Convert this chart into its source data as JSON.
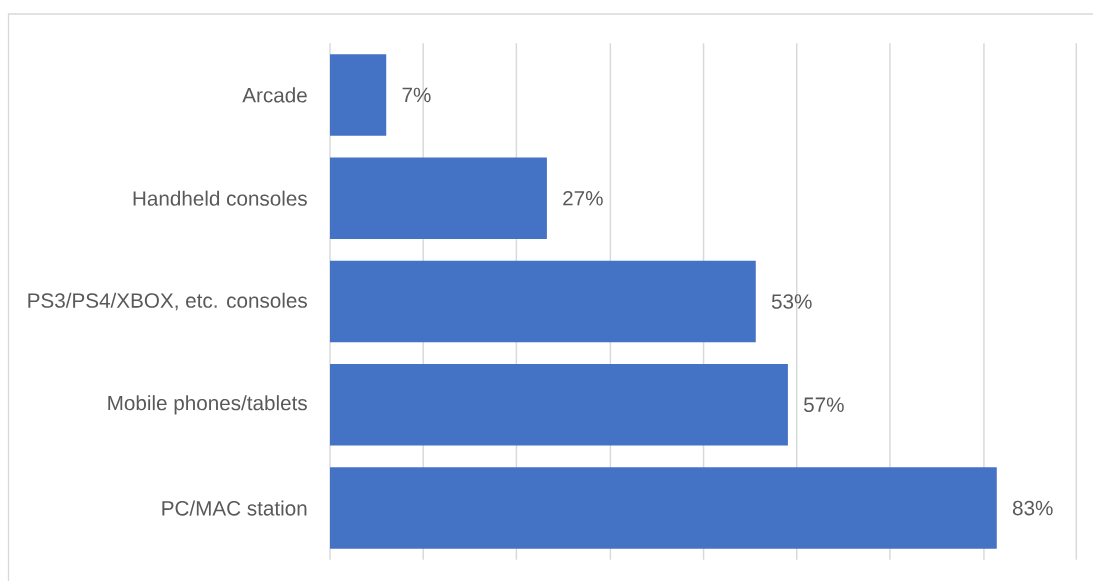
{
  "chart_data": {
    "type": "bar",
    "orientation": "horizontal",
    "categories": [
      "Arcade",
      "Handheld consoles",
      "PS3/PS4/XBOX, etc. consoles",
      "Mobile phones/tablets",
      "PC/MAC station"
    ],
    "values": [
      7,
      27,
      53,
      57,
      83
    ],
    "color": "#4472c4",
    "value_labels": [
      "7%",
      "27%",
      "53%",
      "57%",
      "83%"
    ],
    "xlim": [
      0,
      92.9
    ],
    "xticks": [
      {
        "value": 0,
        "label": null
      },
      {
        "value": 11.6,
        "label": null
      },
      {
        "value": 23.2,
        "label": null
      },
      {
        "value": 34.9,
        "label": null
      },
      {
        "value": 46.5,
        "label": null
      },
      {
        "value": 58.1,
        "label": null
      },
      {
        "value": 69.7,
        "label": null
      },
      {
        "value": 81.4,
        "label": null
      },
      {
        "value": 92.9,
        "label": null
      }
    ],
    "grid": "x",
    "tick_labels": "y"
  }
}
